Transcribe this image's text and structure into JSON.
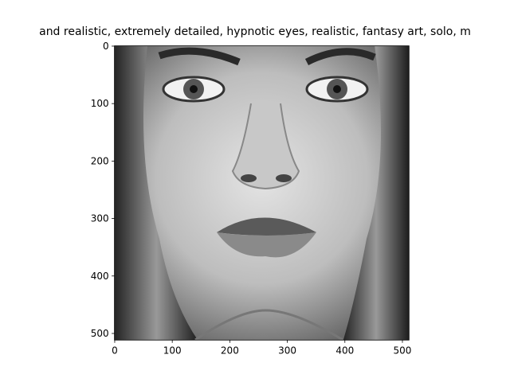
{
  "chart_data": {
    "type": "image",
    "title": "and realistic, extremely detailed, hypnotic eyes, realistic, fantasy art, solo, m",
    "xlim": [
      -0.5,
      511.5
    ],
    "ylim": [
      511.5,
      -0.5
    ],
    "xticks": [
      0,
      100,
      200,
      300,
      400,
      500
    ],
    "yticks": [
      0,
      100,
      200,
      300,
      400,
      500
    ]
  }
}
